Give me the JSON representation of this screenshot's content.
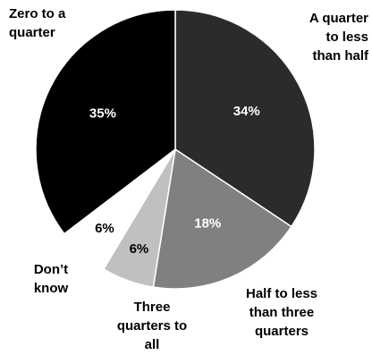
{
  "chart_data": {
    "type": "pie",
    "title": "",
    "slices": [
      {
        "label": "A quarter to less than half",
        "value": 34,
        "value_label": "34%",
        "color": "#2b2b2b"
      },
      {
        "label": "Half to less than three quarters",
        "value": 18,
        "value_label": "18%",
        "color": "#808080"
      },
      {
        "label": "Three quarters to all",
        "value": 6,
        "value_label": "6%",
        "color": "#c0c0c0"
      },
      {
        "label": "Don't know",
        "value": 6,
        "value_label": "6%",
        "color": "#ffffff"
      },
      {
        "label": "Zero to a quarter",
        "value": 35,
        "value_label": "35%",
        "color": "#000000"
      }
    ],
    "category_labels": [
      [
        "A quarter",
        "to less",
        "than half"
      ],
      [
        "Half to less",
        "than three",
        "quarters"
      ],
      [
        "Three",
        "quarters to",
        "all"
      ],
      [
        "Don’t",
        "know"
      ],
      [
        "Zero to a",
        "quarter"
      ]
    ],
    "legend": "none",
    "colors": {
      "outline": "#ffffff",
      "value_text_light": "#ffffff",
      "value_text_dark": "#000000"
    }
  }
}
